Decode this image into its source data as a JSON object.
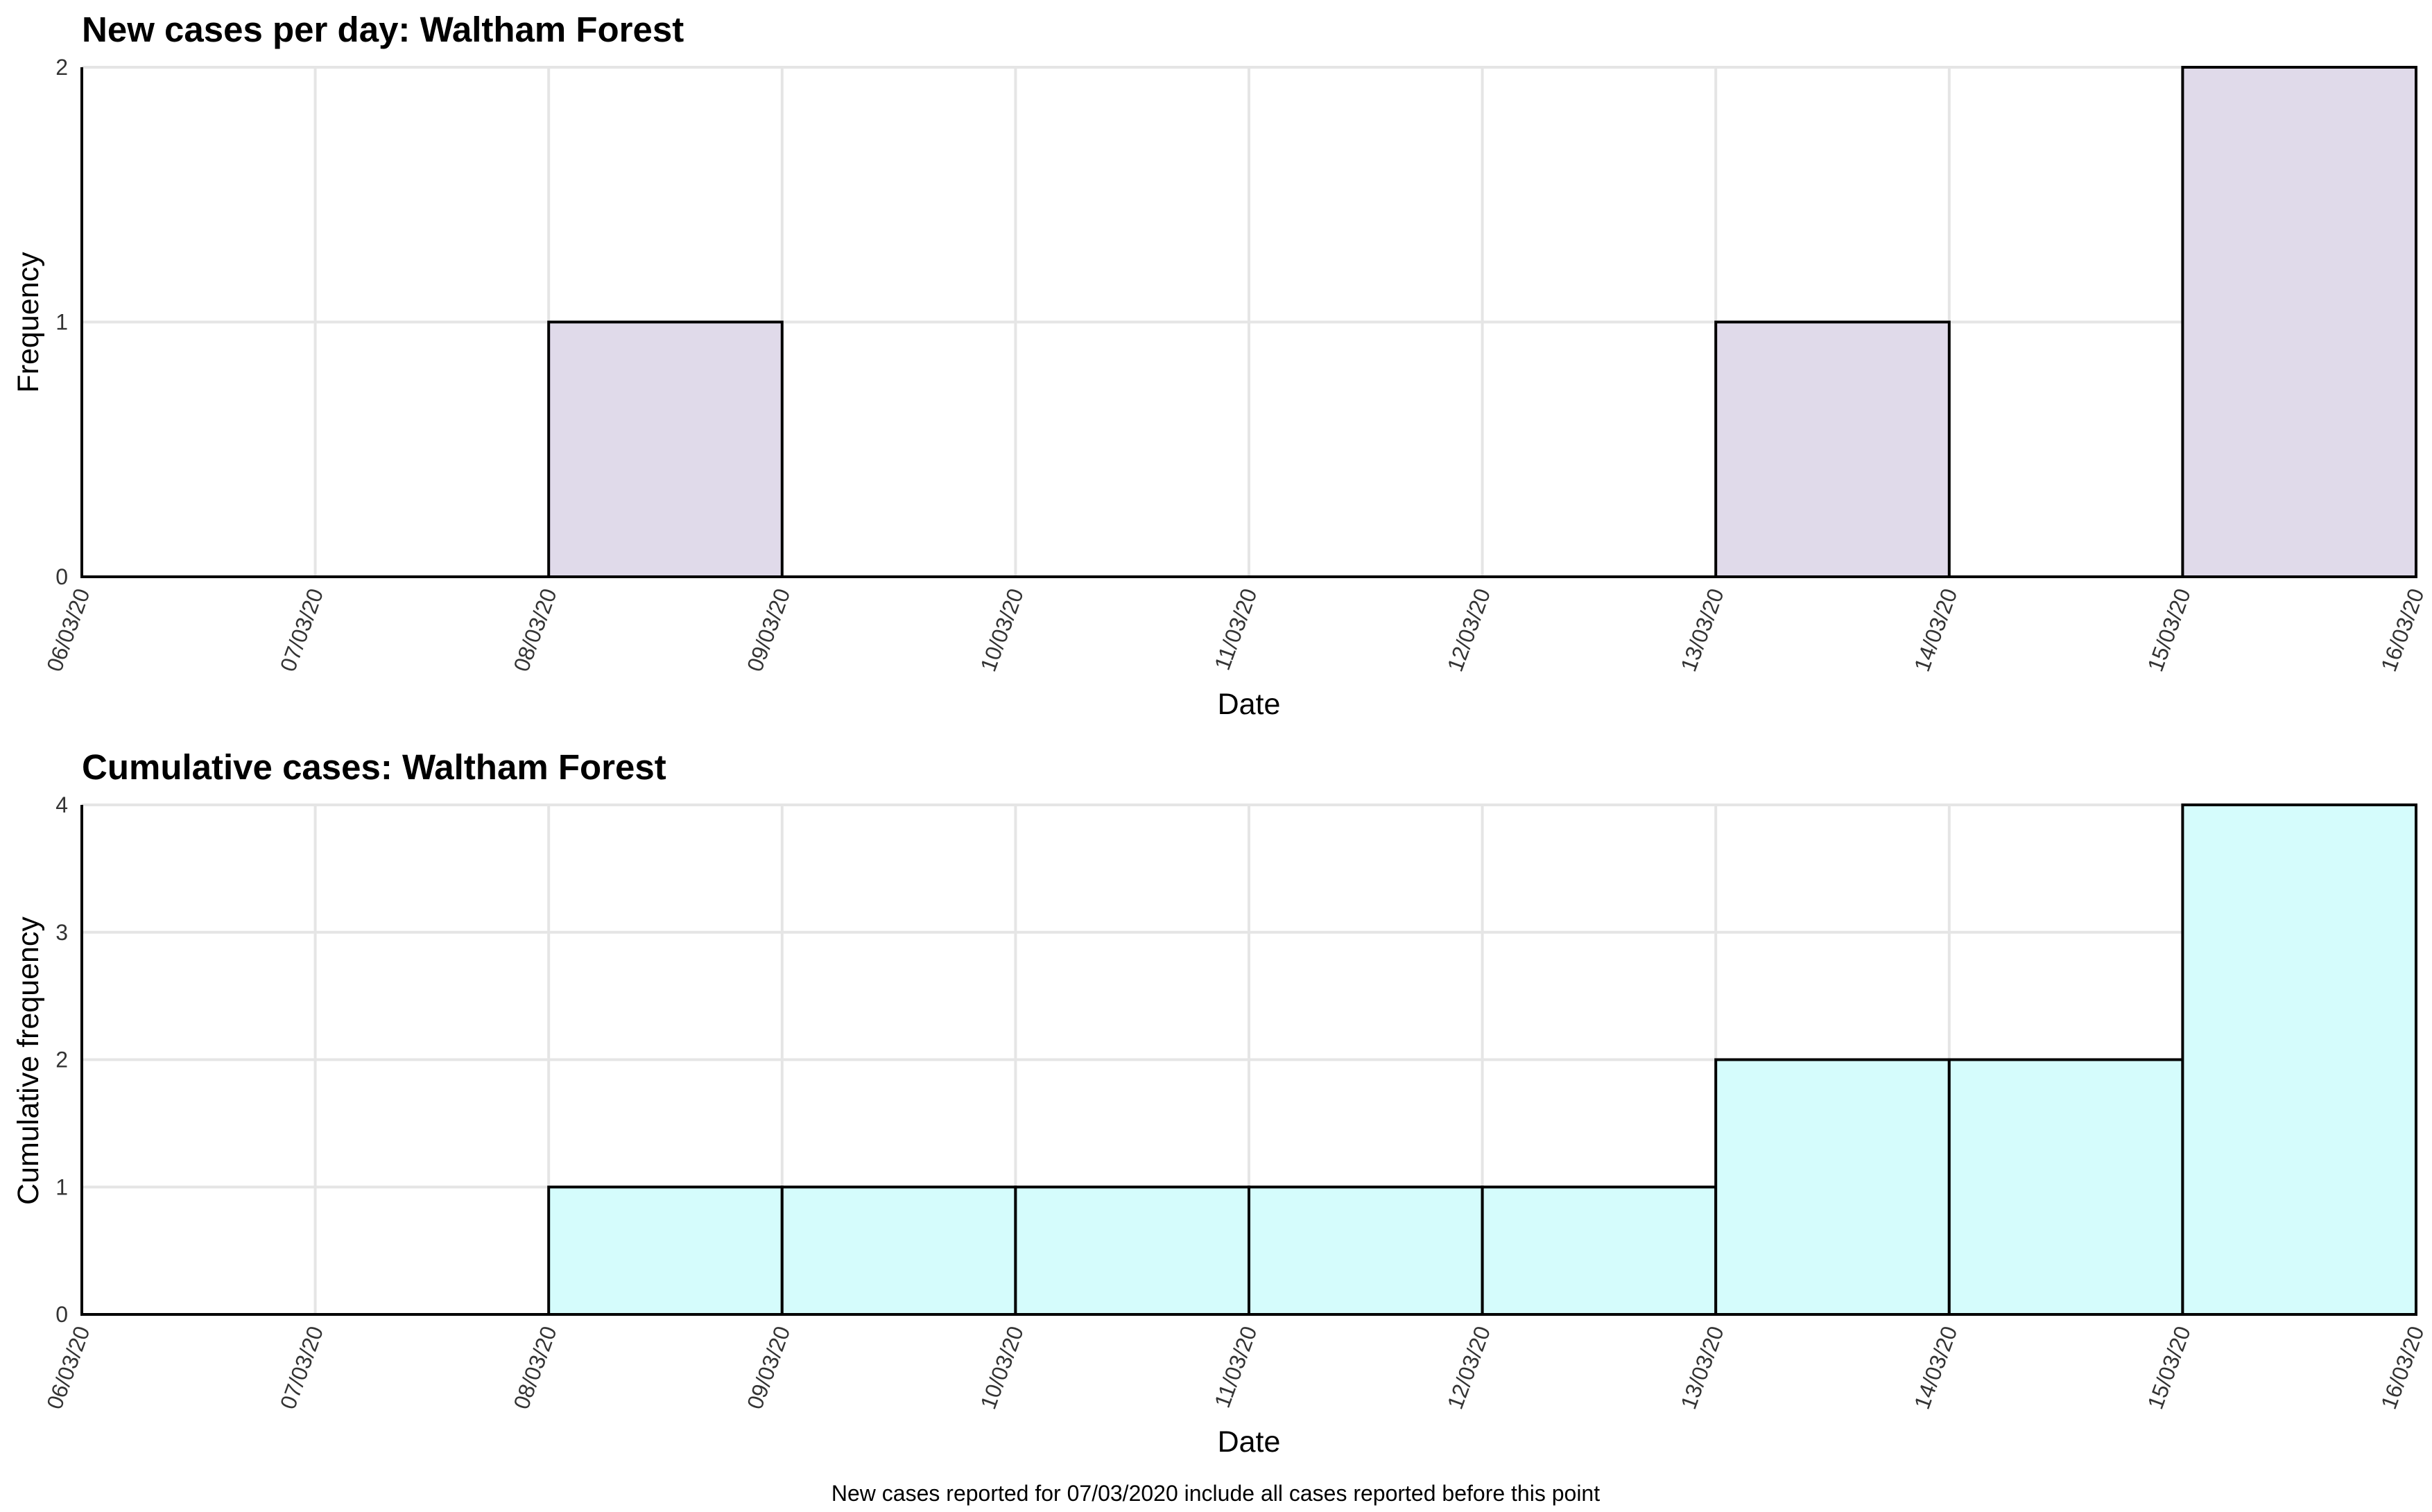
{
  "chart_data": [
    {
      "type": "bar",
      "title": "New cases per day: Waltham Forest",
      "xlabel": "Date",
      "ylabel": "Frequency",
      "ylim": [
        0,
        2
      ],
      "yticks": [
        "0",
        "1",
        "2"
      ],
      "xticks": [
        "06/03/20",
        "07/03/20",
        "08/03/20",
        "09/03/20",
        "10/03/20",
        "11/03/20",
        "12/03/20",
        "13/03/20",
        "14/03/20",
        "15/03/20",
        "16/03/20"
      ],
      "categories": [
        "06/03/20",
        "07/03/20",
        "08/03/20",
        "09/03/20",
        "10/03/20",
        "11/03/20",
        "12/03/20",
        "13/03/20",
        "14/03/20",
        "15/03/20"
      ],
      "values": [
        0,
        0,
        1,
        0,
        0,
        0,
        0,
        1,
        0,
        2
      ],
      "grid": true,
      "bar_color": "#e0daea"
    },
    {
      "type": "bar",
      "title": "Cumulative cases: Waltham Forest",
      "xlabel": "Date",
      "ylabel": "Cumulative frequency",
      "ylim": [
        0,
        4
      ],
      "yticks": [
        "0",
        "1",
        "2",
        "3",
        "4"
      ],
      "xticks": [
        "06/03/20",
        "07/03/20",
        "08/03/20",
        "09/03/20",
        "10/03/20",
        "11/03/20",
        "12/03/20",
        "13/03/20",
        "14/03/20",
        "15/03/20",
        "16/03/20"
      ],
      "categories": [
        "06/03/20",
        "07/03/20",
        "08/03/20",
        "09/03/20",
        "10/03/20",
        "11/03/20",
        "12/03/20",
        "13/03/20",
        "14/03/20",
        "15/03/20"
      ],
      "values": [
        0,
        0,
        1,
        1,
        1,
        1,
        1,
        2,
        2,
        4
      ],
      "grid": true,
      "bar_color": "#d5fcfc"
    }
  ],
  "caption": "New cases reported for 07/03/2020 include all cases reported before this point"
}
